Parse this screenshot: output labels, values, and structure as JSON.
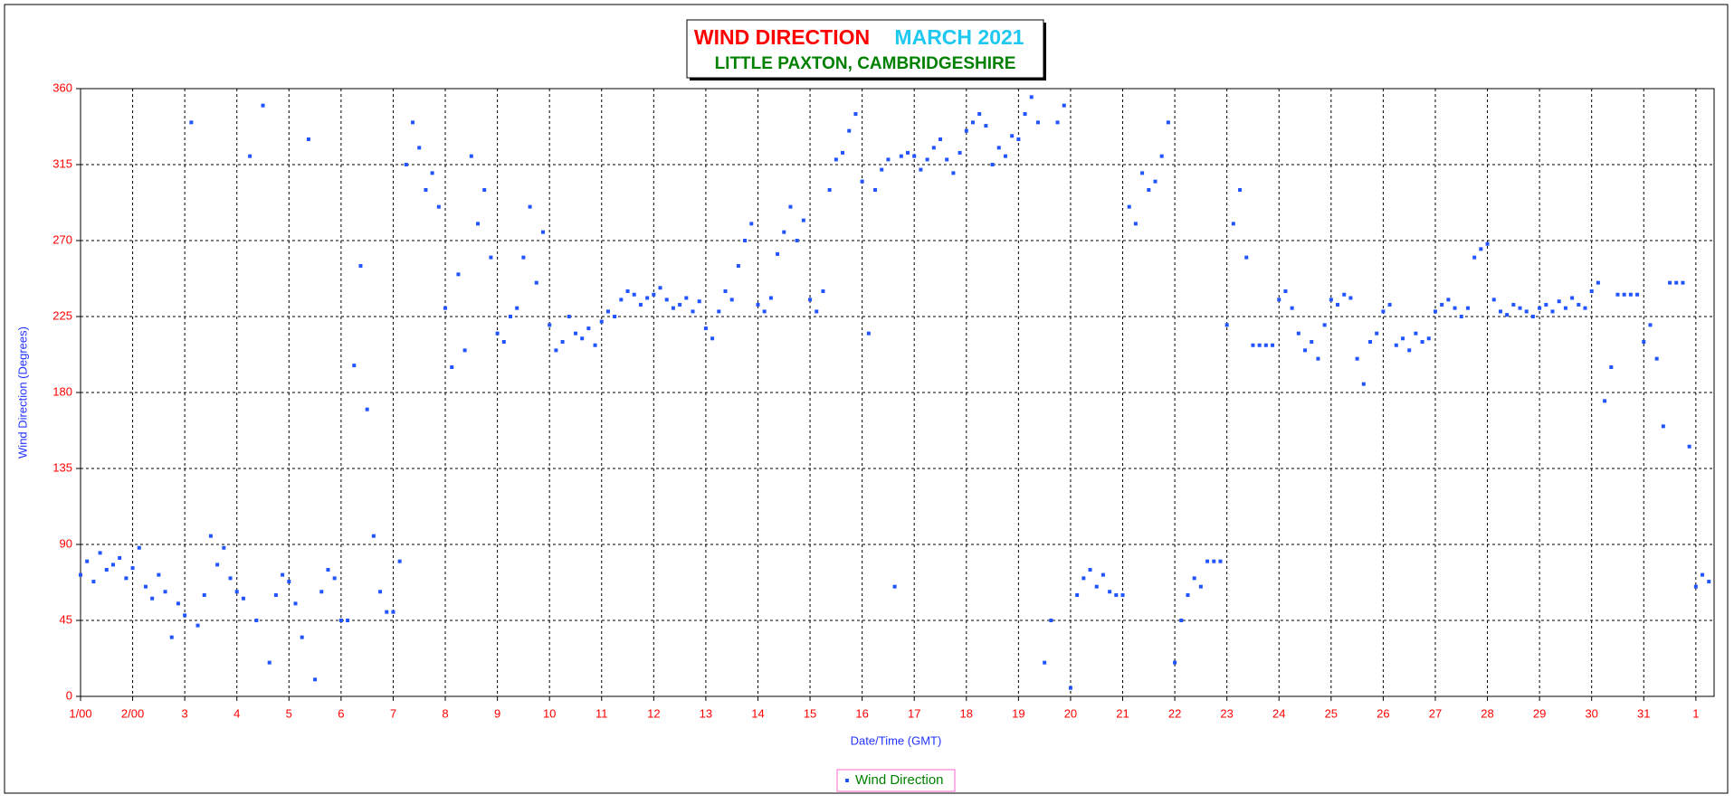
{
  "chart_data": {
    "type": "scatter",
    "title": "WIND DIRECTION",
    "title_color": "#ff0000",
    "subtitle": "MARCH 2021",
    "subtitle_color": "#1ec8f0",
    "location": "LITTLE PAXTON, CAMBRIDGESHIRE",
    "location_color": "#008000",
    "y_label": "Wind Direction (Degrees)",
    "x_label": "Date/Time (GMT)",
    "grid": true,
    "legend": "bottom",
    "xlim": [
      0,
      31.35
    ],
    "ylim": [
      0,
      360
    ],
    "yticks": [
      0,
      45,
      90,
      135,
      180,
      225,
      270,
      315,
      360
    ],
    "xticks": [
      {
        "value": 0,
        "label": "1/00"
      },
      {
        "value": 1,
        "label": "2/00"
      },
      {
        "value": 2,
        "label": "3"
      },
      {
        "value": 3,
        "label": "4"
      },
      {
        "value": 4,
        "label": "5"
      },
      {
        "value": 5,
        "label": "6"
      },
      {
        "value": 6,
        "label": "7"
      },
      {
        "value": 7,
        "label": "8"
      },
      {
        "value": 8,
        "label": "9"
      },
      {
        "value": 9,
        "label": "10"
      },
      {
        "value": 10,
        "label": "11"
      },
      {
        "value": 11,
        "label": "12"
      },
      {
        "value": 12,
        "label": "13"
      },
      {
        "value": 13,
        "label": "14"
      },
      {
        "value": 14,
        "label": "15"
      },
      {
        "value": 15,
        "label": "16"
      },
      {
        "value": 16,
        "label": "17"
      },
      {
        "value": 17,
        "label": "18"
      },
      {
        "value": 18,
        "label": "19"
      },
      {
        "value": 19,
        "label": "20"
      },
      {
        "value": 20,
        "label": "21"
      },
      {
        "value": 21,
        "label": "22"
      },
      {
        "value": 22,
        "label": "23"
      },
      {
        "value": 23,
        "label": "24"
      },
      {
        "value": 24,
        "label": "25"
      },
      {
        "value": 25,
        "label": "26"
      },
      {
        "value": 26,
        "label": "27"
      },
      {
        "value": 27,
        "label": "28"
      },
      {
        "value": 28,
        "label": "29"
      },
      {
        "value": 29,
        "label": "30"
      },
      {
        "value": 30,
        "label": "31"
      },
      {
        "value": 31,
        "label": "1"
      }
    ],
    "x": [
      0,
      0.125,
      0.25,
      0.375,
      0.5,
      0.625,
      0.75,
      0.875,
      1,
      1.125,
      1.25,
      1.375,
      1.5,
      1.625,
      1.75,
      1.875,
      2,
      2.125,
      2.25,
      2.375,
      2.5,
      2.625,
      2.75,
      2.875,
      3,
      3.125,
      3.25,
      3.375,
      3.5,
      3.625,
      3.75,
      3.875,
      4,
      4.125,
      4.25,
      4.375,
      4.5,
      4.625,
      4.75,
      4.875,
      5,
      5.125,
      5.25,
      5.375,
      5.5,
      5.625,
      5.75,
      5.875,
      6,
      6.125,
      6.25,
      6.375,
      6.5,
      6.625,
      6.75,
      6.875,
      7,
      7.125,
      7.25,
      7.375,
      7.5,
      7.625,
      7.75,
      7.875,
      8,
      8.125,
      8.25,
      8.375,
      8.5,
      8.625,
      8.75,
      8.875,
      9,
      9.125,
      9.25,
      9.375,
      9.5,
      9.625,
      9.75,
      9.875,
      10,
      10.125,
      10.25,
      10.375,
      10.5,
      10.625,
      10.75,
      10.875,
      11,
      11.125,
      11.25,
      11.375,
      11.5,
      11.625,
      11.75,
      11.875,
      12,
      12.125,
      12.25,
      12.375,
      12.5,
      12.625,
      12.75,
      12.875,
      13,
      13.125,
      13.25,
      13.375,
      13.5,
      13.625,
      13.75,
      13.875,
      14,
      14.125,
      14.25,
      14.375,
      14.5,
      14.625,
      14.75,
      14.875,
      15,
      15.125,
      15.25,
      15.375,
      15.5,
      15.625,
      15.75,
      15.875,
      16,
      16.125,
      16.25,
      16.375,
      16.5,
      16.625,
      16.75,
      16.875,
      17,
      17.125,
      17.25,
      17.375,
      17.5,
      17.625,
      17.75,
      17.875,
      18,
      18.125,
      18.25,
      18.375,
      18.5,
      18.625,
      18.75,
      18.875,
      19,
      19.125,
      19.25,
      19.375,
      19.5,
      19.625,
      19.75,
      19.875,
      20,
      20.125,
      20.25,
      20.375,
      20.5,
      20.625,
      20.75,
      20.875,
      21,
      21.125,
      21.25,
      21.375,
      21.5,
      21.625,
      21.75,
      21.875,
      22,
      22.125,
      22.25,
      22.375,
      22.5,
      22.625,
      22.75,
      22.875,
      23,
      23.125,
      23.25,
      23.375,
      23.5,
      23.625,
      23.75,
      23.875,
      24,
      24.125,
      24.25,
      24.375,
      24.5,
      24.625,
      24.75,
      24.875,
      25,
      25.125,
      25.25,
      25.375,
      25.5,
      25.625,
      25.75,
      25.875,
      26,
      26.125,
      26.25,
      26.375,
      26.5,
      26.625,
      26.75,
      26.875,
      27,
      27.125,
      27.25,
      27.375,
      27.5,
      27.625,
      27.75,
      27.875,
      28,
      28.125,
      28.25,
      28.375,
      28.5,
      28.625,
      28.75,
      28.875,
      29,
      29.125,
      29.25,
      29.375,
      29.5,
      29.625,
      29.75,
      29.875,
      30,
      30.125,
      30.25,
      30.375,
      30.5,
      30.625,
      30.75,
      30.875,
      31,
      31.125,
      31.25
    ],
    "series": [
      {
        "name": "Wind Direction",
        "color": "#2255ff",
        "name_color": "#008000",
        "values": [
          72,
          80,
          68,
          85,
          75,
          78,
          82,
          70,
          76,
          88,
          65,
          58,
          72,
          62,
          35,
          55,
          48,
          340,
          42,
          60,
          95,
          78,
          88,
          70,
          62,
          58,
          320,
          45,
          350,
          20,
          60,
          72,
          68,
          55,
          35,
          330,
          10,
          62,
          75,
          70,
          45,
          45,
          196,
          255,
          170,
          95,
          62,
          50,
          50,
          80,
          315,
          340,
          325,
          300,
          310,
          290,
          230,
          195,
          250,
          205,
          320,
          280,
          300,
          260,
          215,
          210,
          225,
          230,
          260,
          290,
          245,
          275,
          220,
          205,
          210,
          225,
          215,
          212,
          218,
          208,
          222,
          228,
          225,
          235,
          240,
          238,
          232,
          236,
          238,
          242,
          235,
          230,
          232,
          236,
          228,
          234,
          218,
          212,
          228,
          240,
          235,
          255,
          270,
          280,
          232,
          228,
          236,
          262,
          275,
          290,
          270,
          282,
          235,
          228,
          240,
          300,
          318,
          322,
          335,
          345,
          305,
          215,
          300,
          312,
          318,
          65,
          320,
          322,
          320,
          312,
          318,
          325,
          330,
          318,
          310,
          322,
          335,
          340,
          345,
          338,
          315,
          325,
          320,
          332,
          330,
          345,
          355,
          340,
          20,
          45,
          340,
          350,
          5,
          60,
          70,
          75,
          65,
          72,
          62,
          60,
          60,
          290,
          280,
          310,
          300,
          305,
          320,
          340,
          20,
          45,
          60,
          70,
          65,
          80,
          80,
          80,
          220,
          280,
          300,
          260,
          208,
          208,
          208,
          208,
          235,
          240,
          230,
          215,
          205,
          210,
          200,
          220,
          235,
          232,
          238,
          236,
          200,
          185,
          210,
          215,
          228,
          232,
          208,
          212,
          205,
          215,
          210,
          212,
          228,
          232,
          235,
          230,
          225,
          230,
          260,
          265,
          268,
          235,
          228,
          226,
          232,
          230,
          228,
          225,
          230,
          232,
          228,
          234,
          230,
          236,
          232,
          230,
          240,
          245,
          175,
          195,
          238,
          238,
          238,
          238,
          210,
          220,
          200,
          160,
          245,
          245,
          245,
          148,
          65,
          72,
          68
        ]
      }
    ]
  }
}
